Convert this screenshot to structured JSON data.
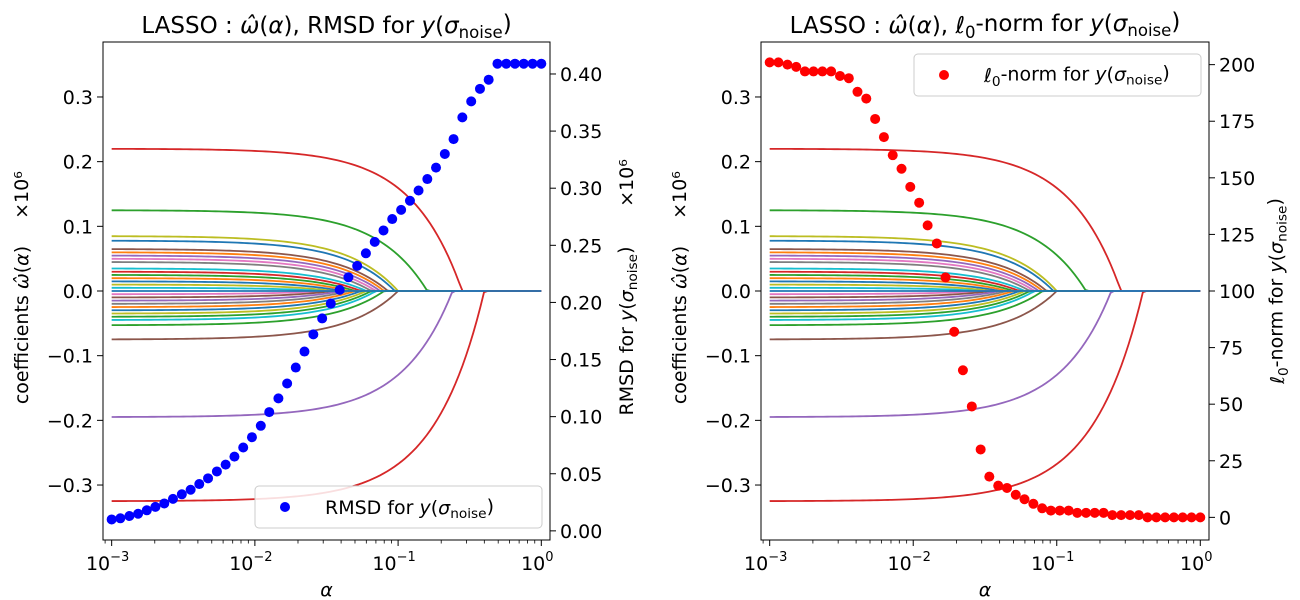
{
  "chart_data": [
    {
      "type": "scatter",
      "title": "LASSO : ω̂(α), RMSD for y(σnoise)",
      "xlabel": "α",
      "ylabel_left": "coefficients ω̂(α)",
      "ylabel_left_scale": "×10⁶",
      "ylabel_right": "RMSD for y(σnoise)",
      "ylabel_right_scale": "×10⁶",
      "x_scale": "log",
      "xlim": [
        0.00087,
        1.15
      ],
      "ylim_left": [
        -0.385,
        0.385
      ],
      "ylim_right": [
        -0.008,
        0.428
      ],
      "x_ticks": [
        {
          "value": 0.001,
          "base": "10",
          "exp": "−3"
        },
        {
          "value": 0.01,
          "base": "10",
          "exp": "−2"
        },
        {
          "value": 0.1,
          "base": "10",
          "exp": "−1"
        },
        {
          "value": 1,
          "base": "10",
          "exp": "0"
        }
      ],
      "y_ticks_left": [
        "0.3",
        "0.2",
        "0.1",
        "0.0",
        "−0.1",
        "−0.2",
        "−0.3"
      ],
      "y_ticks_right": [
        "0.40",
        "0.35",
        "0.30",
        "0.25",
        "0.20",
        "0.15",
        "0.10",
        "0.05",
        "0.00"
      ],
      "legend": {
        "label": "RMSD for y(σnoise)",
        "color": "#0000ff",
        "position": "lower right"
      },
      "coefficient_paths": {
        "alpha_range": [
          0.001,
          1.0
        ],
        "series": [
          {
            "start": 0.22,
            "zero_at": 0.28,
            "color": "#d62728"
          },
          {
            "start": 0.125,
            "zero_at": 0.16,
            "color": "#2ca02c"
          },
          {
            "start": 0.085,
            "zero_at": 0.1,
            "color": "#bcbd22"
          },
          {
            "start": 0.078,
            "zero_at": 0.095,
            "color": "#1f77b4"
          },
          {
            "start": 0.065,
            "zero_at": 0.085,
            "color": "#8c564b"
          },
          {
            "start": 0.06,
            "zero_at": 0.08,
            "color": "#ff7f0e"
          },
          {
            "start": 0.055,
            "zero_at": 0.075,
            "color": "#9467bd"
          },
          {
            "start": 0.05,
            "zero_at": 0.07,
            "color": "#e377c2"
          },
          {
            "start": 0.045,
            "zero_at": 0.065,
            "color": "#7f7f7f"
          },
          {
            "start": 0.035,
            "zero_at": 0.06,
            "color": "#17becf"
          },
          {
            "start": 0.03,
            "zero_at": 0.055,
            "color": "#d62728"
          },
          {
            "start": 0.025,
            "zero_at": 0.05,
            "color": "#2ca02c"
          },
          {
            "start": 0.02,
            "zero_at": 0.045,
            "color": "#ff7f0e"
          },
          {
            "start": 0.015,
            "zero_at": 0.04,
            "color": "#1f77b4"
          },
          {
            "start": 0.01,
            "zero_at": 0.035,
            "color": "#bcbd22"
          },
          {
            "start": 0.005,
            "zero_at": 0.03,
            "color": "#17becf"
          },
          {
            "start": -0.005,
            "zero_at": 0.03,
            "color": "#e377c2"
          },
          {
            "start": -0.01,
            "zero_at": 0.035,
            "color": "#8c564b"
          },
          {
            "start": -0.015,
            "zero_at": 0.04,
            "color": "#9467bd"
          },
          {
            "start": -0.02,
            "zero_at": 0.045,
            "color": "#7f7f7f"
          },
          {
            "start": -0.025,
            "zero_at": 0.05,
            "color": "#ff7f0e"
          },
          {
            "start": -0.03,
            "zero_at": 0.055,
            "color": "#1f77b4"
          },
          {
            "start": -0.035,
            "zero_at": 0.06,
            "color": "#bcbd22"
          },
          {
            "start": -0.04,
            "zero_at": 0.065,
            "color": "#2ca02c"
          },
          {
            "start": -0.045,
            "zero_at": 0.07,
            "color": "#17becf"
          },
          {
            "start": -0.053,
            "zero_at": 0.08,
            "color": "#2ca02c"
          },
          {
            "start": -0.075,
            "zero_at": 0.1,
            "color": "#8c564b"
          },
          {
            "start": -0.195,
            "zero_at": 0.24,
            "color": "#9467bd"
          },
          {
            "start": -0.325,
            "zero_at": 0.4,
            "color": "#d62728"
          },
          {
            "start": 0.0,
            "zero_at": 1.0,
            "color": "#1f77b4"
          }
        ]
      },
      "series": [
        {
          "name": "RMSD for y(σnoise)",
          "color": "#0000ff",
          "x": [
            0.001,
            0.00115,
            0.00133,
            0.00153,
            0.00176,
            0.00202,
            0.00233,
            0.00268,
            0.00309,
            0.00356,
            0.00409,
            0.00471,
            0.00543,
            0.00625,
            0.0072,
            0.00829,
            0.00954,
            0.011,
            0.0126,
            0.0146,
            0.0168,
            0.0193,
            0.0222,
            0.0256,
            0.0295,
            0.0339,
            0.0391,
            0.045,
            0.0518,
            0.0596,
            0.0687,
            0.0791,
            0.091,
            0.105,
            0.121,
            0.139,
            0.16,
            0.184,
            0.212,
            0.244,
            0.281,
            0.324,
            0.373,
            0.429,
            0.494,
            0.569,
            0.655,
            0.754,
            0.869,
            1.0
          ],
          "y": [
            0.01,
            0.011,
            0.013,
            0.015,
            0.018,
            0.021,
            0.024,
            0.028,
            0.032,
            0.036,
            0.041,
            0.046,
            0.052,
            0.058,
            0.065,
            0.073,
            0.082,
            0.092,
            0.104,
            0.116,
            0.129,
            0.143,
            0.157,
            0.172,
            0.186,
            0.199,
            0.211,
            0.222,
            0.232,
            0.243,
            0.253,
            0.263,
            0.273,
            0.281,
            0.289,
            0.298,
            0.308,
            0.318,
            0.33,
            0.343,
            0.362,
            0.376,
            0.387,
            0.395,
            0.409,
            0.409,
            0.409,
            0.409,
            0.409,
            0.409
          ]
        }
      ]
    },
    {
      "type": "scatter",
      "title": "LASSO : ω̂(α), ℓ0-norm for y(σnoise)",
      "xlabel": "α",
      "ylabel_left": "coefficients ω̂(α)",
      "ylabel_left_scale": "×10⁶",
      "ylabel_right": "ℓ0-norm for y(σnoise)",
      "x_scale": "log",
      "xlim": [
        0.00087,
        1.15
      ],
      "ylim_left": [
        -0.385,
        0.385
      ],
      "ylim_right": [
        -10,
        210
      ],
      "x_ticks": [
        {
          "value": 0.001,
          "base": "10",
          "exp": "−3"
        },
        {
          "value": 0.01,
          "base": "10",
          "exp": "−2"
        },
        {
          "value": 0.1,
          "base": "10",
          "exp": "−1"
        },
        {
          "value": 1,
          "base": "10",
          "exp": "0"
        }
      ],
      "y_ticks_left": [
        "0.3",
        "0.2",
        "0.1",
        "0.0",
        "−0.1",
        "−0.2",
        "−0.3"
      ],
      "y_ticks_right": [
        "200",
        "175",
        "150",
        "125",
        "100",
        "75",
        "50",
        "25",
        "0"
      ],
      "legend": {
        "label": "ℓ0-norm for y(σnoise)",
        "color": "#ff0000",
        "position": "upper right"
      },
      "series": [
        {
          "name": "ℓ0-norm for y(σnoise)",
          "color": "#ff0000",
          "x": [
            0.001,
            0.00115,
            0.00133,
            0.00153,
            0.00176,
            0.00202,
            0.00233,
            0.00268,
            0.00309,
            0.00356,
            0.00409,
            0.00471,
            0.00543,
            0.00625,
            0.0072,
            0.00829,
            0.00954,
            0.011,
            0.0126,
            0.0146,
            0.0168,
            0.0193,
            0.0222,
            0.0256,
            0.0295,
            0.0339,
            0.0391,
            0.045,
            0.0518,
            0.0596,
            0.0687,
            0.0791,
            0.091,
            0.105,
            0.121,
            0.139,
            0.16,
            0.184,
            0.212,
            0.244,
            0.281,
            0.324,
            0.373,
            0.429,
            0.494,
            0.569,
            0.655,
            0.754,
            0.869,
            1.0
          ],
          "y": [
            201,
            201,
            200,
            199,
            197,
            197,
            197,
            197,
            195,
            194,
            188,
            185,
            176,
            168,
            160,
            154,
            146,
            139,
            129,
            121,
            106,
            82,
            65,
            49,
            30,
            18,
            14,
            13,
            10,
            8,
            6,
            4,
            3,
            3,
            3,
            2,
            2,
            2,
            2,
            1,
            1,
            1,
            1,
            0,
            0,
            0,
            0,
            0,
            0,
            0
          ]
        }
      ]
    }
  ]
}
